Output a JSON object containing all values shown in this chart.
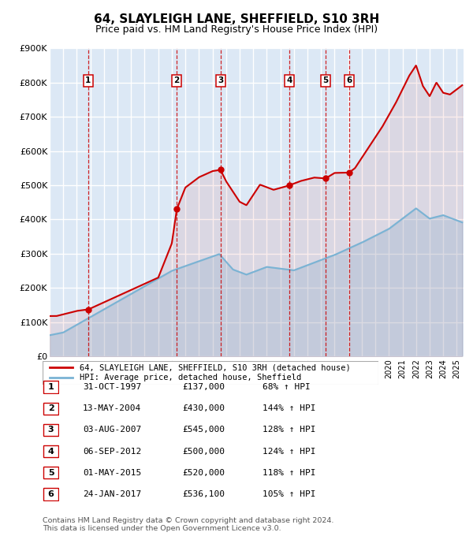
{
  "title": "64, SLAYLEIGH LANE, SHEFFIELD, S10 3RH",
  "subtitle": "Price paid vs. HM Land Registry's House Price Index (HPI)",
  "plot_bg_color": "#dce8f5",
  "grid_color": "#ffffff",
  "ylim": [
    0,
    900000
  ],
  "yticks": [
    0,
    100000,
    200000,
    300000,
    400000,
    500000,
    600000,
    700000,
    800000,
    900000
  ],
  "ytick_labels": [
    "£0",
    "£100K",
    "£200K",
    "£300K",
    "£400K",
    "£500K",
    "£600K",
    "£700K",
    "£800K",
    "£900K"
  ],
  "xmin": 1995.0,
  "xmax": 2025.5,
  "sale_dates_x": [
    1997.833,
    2004.367,
    2007.583,
    2012.675,
    2015.333,
    2017.069
  ],
  "sale_prices_y": [
    137000,
    430000,
    545000,
    500000,
    520000,
    536100
  ],
  "sale_labels": [
    "1",
    "2",
    "3",
    "4",
    "5",
    "6"
  ],
  "sale_color": "#cc0000",
  "red_line_color": "#cc0000",
  "blue_line_color": "#7ab3d4",
  "legend_label_red": "64, SLAYLEIGH LANE, SHEFFIELD, S10 3RH (detached house)",
  "legend_label_blue": "HPI: Average price, detached house, Sheffield",
  "table_rows": [
    {
      "num": "1",
      "date": "31-OCT-1997",
      "price": "£137,000",
      "hpi": "68% ↑ HPI"
    },
    {
      "num": "2",
      "date": "13-MAY-2004",
      "price": "£430,000",
      "hpi": "144% ↑ HPI"
    },
    {
      "num": "3",
      "date": "03-AUG-2007",
      "price": "£545,000",
      "hpi": "128% ↑ HPI"
    },
    {
      "num": "4",
      "date": "06-SEP-2012",
      "price": "£500,000",
      "hpi": "124% ↑ HPI"
    },
    {
      "num": "5",
      "date": "01-MAY-2015",
      "price": "£520,000",
      "hpi": "118% ↑ HPI"
    },
    {
      "num": "6",
      "date": "24-JAN-2017",
      "price": "£536,100",
      "hpi": "105% ↑ HPI"
    }
  ],
  "footnote1": "Contains HM Land Registry data © Crown copyright and database right 2024.",
  "footnote2": "This data is licensed under the Open Government Licence v3.0.",
  "title_fontsize": 11,
  "subtitle_fontsize": 9
}
